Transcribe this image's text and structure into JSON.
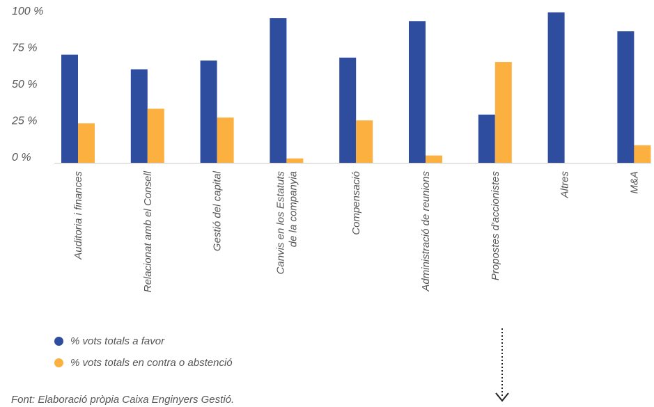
{
  "chart_data": {
    "type": "bar",
    "title": "",
    "xlabel": "",
    "ylabel": "",
    "ylim": [
      0,
      100
    ],
    "yticks": [
      "100 %",
      "75 %",
      "50 %",
      "25 %",
      "0 %"
    ],
    "ytick_values": [
      100,
      75,
      50,
      25,
      0
    ],
    "categories": [
      [
        "Auditoria i finances"
      ],
      [
        "Relacionat amb el Consell"
      ],
      [
        "Gestió del capital"
      ],
      [
        "Canvis en los Estatuts",
        "de la companyia"
      ],
      [
        "Compensació"
      ],
      [
        "Administració de reunions"
      ],
      [
        "Propostes d'accionistes"
      ],
      [
        "Altres"
      ],
      [
        "M&A"
      ]
    ],
    "series": [
      {
        "name": "% vots totals a favor",
        "color": "#2e4d9f",
        "values": [
          74,
          64,
          70,
          99,
          72,
          97,
          33,
          103,
          90
        ]
      },
      {
        "name": "% vots totals en contra o abstenció",
        "color": "#fbb040",
        "values": [
          27,
          37,
          31,
          3,
          29,
          5,
          69,
          0,
          12
        ]
      }
    ],
    "grid": false,
    "legend_position": "bottom-left"
  },
  "source": "Font: Elaboració pròpia Caixa Enginyers Gestió.",
  "arrow_icon": "dotted-arrow-down-icon"
}
